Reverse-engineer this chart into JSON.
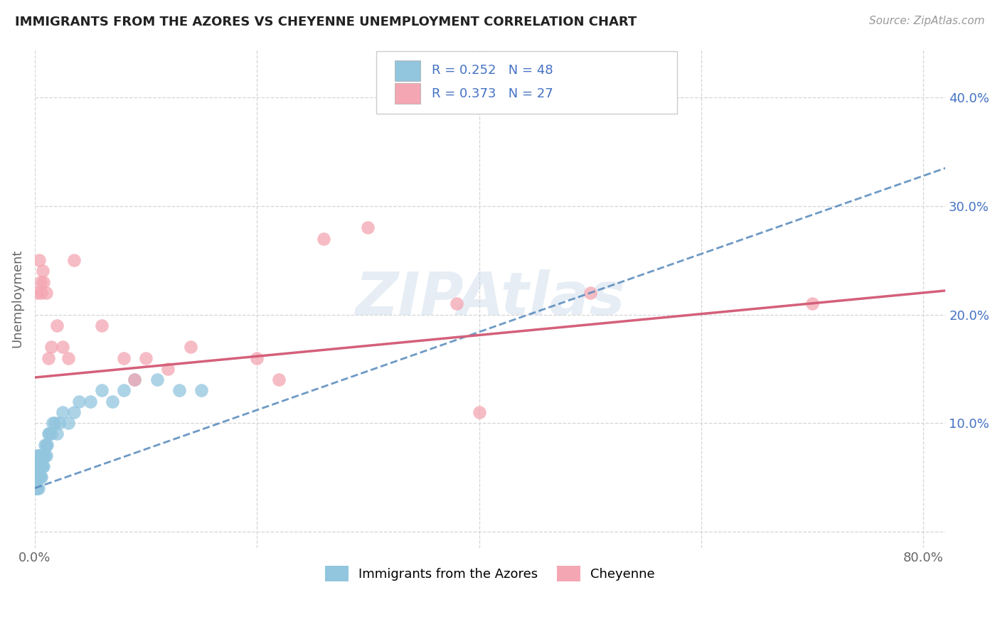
{
  "title": "IMMIGRANTS FROM THE AZORES VS CHEYENNE UNEMPLOYMENT CORRELATION CHART",
  "source_text": "Source: ZipAtlas.com",
  "ylabel": "Unemployment",
  "xlim": [
    0.0,
    0.82
  ],
  "ylim": [
    -0.015,
    0.445
  ],
  "blue_color": "#92c5de",
  "pink_color": "#f4a6b2",
  "blue_line_color": "#5588bb",
  "pink_line_color": "#d4607a",
  "text_color_blue": "#4472c4",
  "grid_color": "#d5d5d5",
  "watermark": "ZIPAtlas",
  "legend_labels": [
    "Immigrants from the Azores",
    "Cheyenne"
  ],
  "legend_R_blue": "R = 0.252",
  "legend_N_blue": "N = 48",
  "legend_R_pink": "R = 0.373",
  "legend_N_pink": "N = 27",
  "blue_x": [
    0.001,
    0.001,
    0.001,
    0.002,
    0.002,
    0.002,
    0.002,
    0.003,
    0.003,
    0.003,
    0.003,
    0.004,
    0.004,
    0.004,
    0.005,
    0.005,
    0.005,
    0.006,
    0.006,
    0.006,
    0.007,
    0.007,
    0.008,
    0.008,
    0.009,
    0.009,
    0.01,
    0.01,
    0.011,
    0.012,
    0.013,
    0.015,
    0.016,
    0.018,
    0.02,
    0.022,
    0.025,
    0.03,
    0.035,
    0.04,
    0.05,
    0.06,
    0.07,
    0.08,
    0.09,
    0.11,
    0.13,
    0.15
  ],
  "blue_y": [
    0.04,
    0.05,
    0.06,
    0.04,
    0.05,
    0.06,
    0.07,
    0.04,
    0.05,
    0.06,
    0.07,
    0.05,
    0.06,
    0.07,
    0.05,
    0.06,
    0.07,
    0.05,
    0.06,
    0.07,
    0.06,
    0.07,
    0.06,
    0.07,
    0.07,
    0.08,
    0.07,
    0.08,
    0.08,
    0.09,
    0.09,
    0.09,
    0.1,
    0.1,
    0.09,
    0.1,
    0.11,
    0.1,
    0.11,
    0.12,
    0.12,
    0.13,
    0.12,
    0.13,
    0.14,
    0.14,
    0.13,
    0.13
  ],
  "pink_x": [
    0.002,
    0.004,
    0.005,
    0.006,
    0.007,
    0.008,
    0.01,
    0.012,
    0.015,
    0.02,
    0.025,
    0.03,
    0.035,
    0.06,
    0.08,
    0.09,
    0.1,
    0.12,
    0.14,
    0.2,
    0.22,
    0.26,
    0.3,
    0.38,
    0.4,
    0.5,
    0.7
  ],
  "pink_y": [
    0.22,
    0.25,
    0.23,
    0.22,
    0.24,
    0.23,
    0.22,
    0.16,
    0.17,
    0.19,
    0.17,
    0.16,
    0.25,
    0.19,
    0.16,
    0.14,
    0.16,
    0.15,
    0.17,
    0.16,
    0.14,
    0.27,
    0.28,
    0.21,
    0.11,
    0.22,
    0.21
  ],
  "blue_trend_x0": 0.0,
  "blue_trend_y0": 0.04,
  "blue_trend_x1": 0.82,
  "blue_trend_y1": 0.335,
  "pink_trend_x0": 0.0,
  "pink_trend_y0": 0.142,
  "pink_trend_x1": 0.82,
  "pink_trend_y1": 0.222
}
